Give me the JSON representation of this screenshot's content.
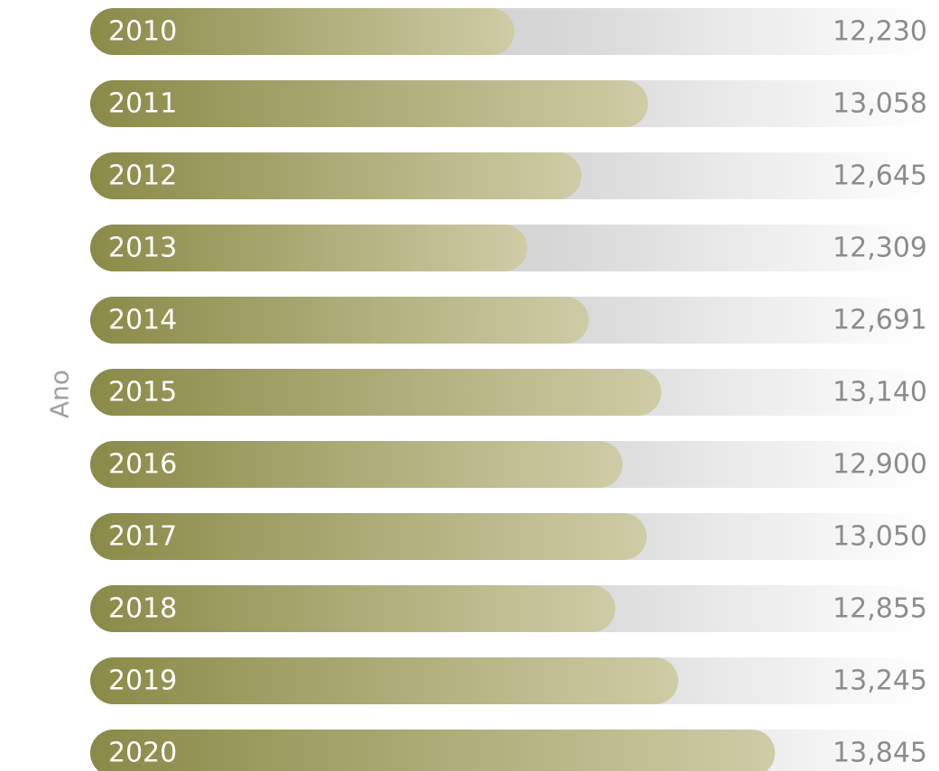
{
  "chart_data": {
    "type": "bar",
    "orientation": "horizontal",
    "y_label": "Ano",
    "categories": [
      "2010",
      "2011",
      "2012",
      "2013",
      "2014",
      "2015",
      "2016",
      "2017",
      "2018",
      "2019",
      "2020"
    ],
    "values": [
      12230,
      13058,
      12645,
      12309,
      12691,
      13140,
      12900,
      13050,
      12855,
      13245,
      13845
    ],
    "value_labels": [
      "12,230",
      "13,058",
      "12,645",
      "12,309",
      "12,691",
      "13,140",
      "12,900",
      "13,050",
      "12,855",
      "13,245",
      "13,845"
    ],
    "color": "#8a8a48",
    "xlim": [
      9600,
      14800
    ]
  }
}
